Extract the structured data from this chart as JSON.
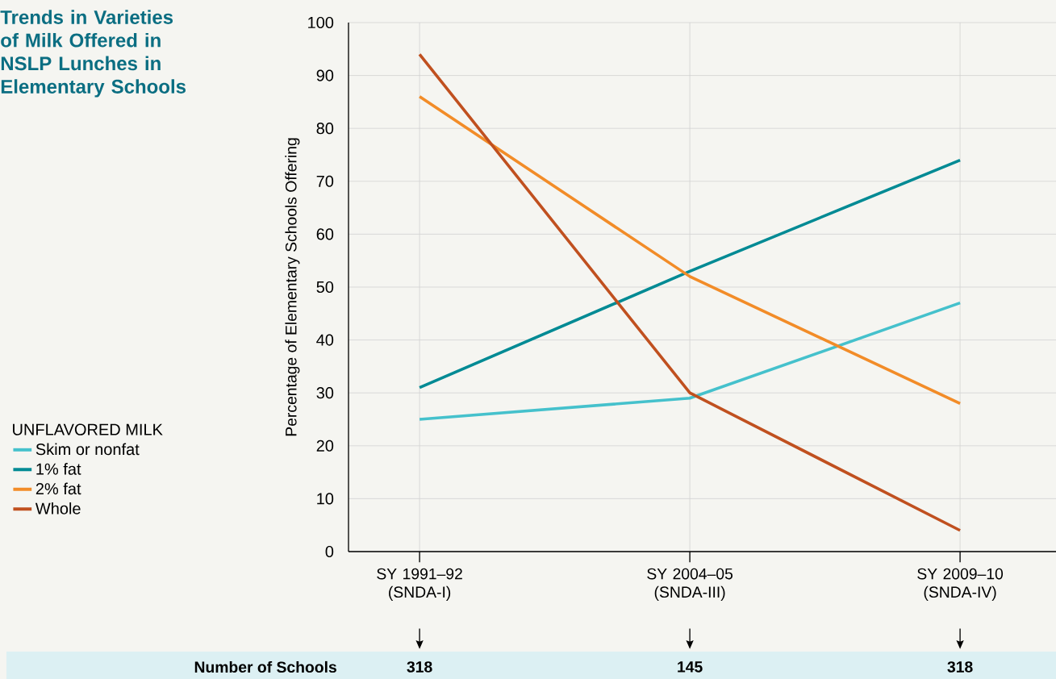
{
  "chart_data": {
    "type": "line",
    "title": "Trends in Varieties of Milk Offered in NSLP Lunches in Elementary Schools",
    "ylabel": "Percentage of Elementary Schools Offering",
    "legend_title": "UNFLAVORED MILK",
    "categories": [
      "SY 1991–92 (SNDA-I)",
      "SY 2004–05 (SNDA-III)",
      "SY 2009–10 (SNDA-IV)"
    ],
    "series": [
      {
        "name": "Skim or nonfat",
        "color": "#45c1cc",
        "values": [
          25,
          29,
          47
        ]
      },
      {
        "name": "1% fat",
        "color": "#008a94",
        "values": [
          31,
          53,
          74
        ]
      },
      {
        "name": "2% fat",
        "color": "#f28c28",
        "values": [
          86,
          52,
          28
        ]
      },
      {
        "name": "Whole",
        "color": "#c0501f",
        "values": [
          94,
          30,
          4
        ]
      }
    ],
    "ylim": [
      0,
      100
    ],
    "yticks": [
      0,
      10,
      20,
      30,
      40,
      50,
      60,
      70,
      80,
      90,
      100
    ],
    "grid": true,
    "legend": "left",
    "marker": "none",
    "line_style": "solid",
    "annotations": [
      "Number of Schools",
      "318",
      "145",
      "318"
    ]
  }
}
